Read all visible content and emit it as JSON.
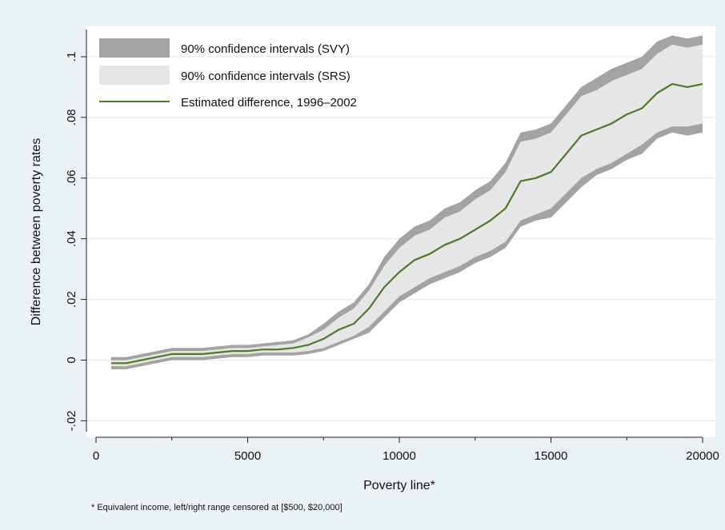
{
  "chart_data": {
    "type": "area",
    "title": "",
    "xlabel": "Poverty line*",
    "ylabel": "Difference between poverty rates",
    "note": "* Equivalent income, left/right range censored at [$500, $20,000]",
    "xlim": [
      0,
      20000
    ],
    "ylim": [
      -0.022,
      0.11
    ],
    "x_ticks": [
      0,
      5000,
      10000,
      15000,
      20000
    ],
    "x_tick_labels": [
      "0",
      "5000",
      "10000",
      "15000",
      "20000"
    ],
    "x_minor_ticks": [
      2500,
      7500,
      12500,
      17500
    ],
    "y_ticks": [
      -0.02,
      0,
      0.02,
      0.04,
      0.06,
      0.08,
      0.1
    ],
    "y_tick_labels": [
      "-.02",
      "0",
      ".02",
      ".04",
      ".06",
      ".08",
      ".1"
    ],
    "grid": true,
    "legend_position": "top-left",
    "legend": [
      "90% confidence intervals (SVY)",
      "90% confidence intervals (SRS)",
      "Estimated difference, 1996–2002"
    ],
    "colors": {
      "background": "#eaf2f3",
      "plot_background": "#ffffff",
      "grid": "#e4ecee",
      "svy_band": "#a3a3a3",
      "srs_band": "#e6e6e6",
      "line": "#4d7a24"
    },
    "x": [
      500,
      1000,
      1500,
      2000,
      2500,
      3000,
      3500,
      4000,
      4500,
      5000,
      5500,
      6000,
      6500,
      7000,
      7500,
      8000,
      8500,
      9000,
      9500,
      10000,
      10500,
      11000,
      11500,
      12000,
      12500,
      13000,
      13500,
      14000,
      14500,
      15000,
      15500,
      16000,
      16500,
      17000,
      17500,
      18000,
      18500,
      19000,
      19500,
      20000
    ],
    "series": [
      {
        "name": "Estimated difference, 1996–2002",
        "values": [
          -0.001,
          -0.001,
          0.0,
          0.001,
          0.002,
          0.002,
          0.002,
          0.0025,
          0.003,
          0.003,
          0.0035,
          0.0035,
          0.004,
          0.005,
          0.007,
          0.01,
          0.012,
          0.017,
          0.024,
          0.029,
          0.033,
          0.035,
          0.038,
          0.04,
          0.043,
          0.046,
          0.05,
          0.059,
          0.06,
          0.062,
          0.068,
          0.074,
          0.076,
          0.078,
          0.081,
          0.083,
          0.088,
          0.091,
          0.09,
          0.091
        ]
      },
      {
        "name": "90% confidence intervals (SRS)",
        "lower": [
          -0.002,
          -0.002,
          -0.001,
          0.0,
          0.001,
          0.001,
          0.001,
          0.0015,
          0.002,
          0.002,
          0.0025,
          0.0025,
          0.0025,
          0.003,
          0.004,
          0.006,
          0.008,
          0.011,
          0.016,
          0.021,
          0.024,
          0.027,
          0.029,
          0.031,
          0.034,
          0.036,
          0.039,
          0.046,
          0.048,
          0.05,
          0.055,
          0.06,
          0.063,
          0.065,
          0.068,
          0.071,
          0.075,
          0.077,
          0.077,
          0.078
        ],
        "upper": [
          0.0,
          0.0,
          0.001,
          0.002,
          0.003,
          0.003,
          0.003,
          0.0035,
          0.004,
          0.004,
          0.0045,
          0.005,
          0.0055,
          0.0075,
          0.01,
          0.014,
          0.017,
          0.023,
          0.031,
          0.037,
          0.041,
          0.043,
          0.047,
          0.049,
          0.053,
          0.056,
          0.062,
          0.072,
          0.073,
          0.075,
          0.081,
          0.087,
          0.089,
          0.092,
          0.094,
          0.096,
          0.101,
          0.104,
          0.103,
          0.104
        ]
      },
      {
        "name": "90% confidence intervals (SVY)",
        "lower": [
          -0.003,
          -0.003,
          -0.002,
          -0.001,
          0.0,
          0.0,
          0.0,
          0.0005,
          0.001,
          0.001,
          0.0015,
          0.0015,
          0.0015,
          0.002,
          0.003,
          0.005,
          0.007,
          0.009,
          0.014,
          0.019,
          0.022,
          0.025,
          0.027,
          0.029,
          0.032,
          0.034,
          0.037,
          0.044,
          0.046,
          0.047,
          0.052,
          0.057,
          0.061,
          0.063,
          0.066,
          0.068,
          0.073,
          0.075,
          0.074,
          0.075
        ],
        "upper": [
          0.001,
          0.001,
          0.002,
          0.003,
          0.004,
          0.004,
          0.004,
          0.0045,
          0.005,
          0.005,
          0.0055,
          0.006,
          0.0065,
          0.0085,
          0.012,
          0.016,
          0.019,
          0.025,
          0.034,
          0.04,
          0.044,
          0.046,
          0.05,
          0.052,
          0.056,
          0.059,
          0.065,
          0.075,
          0.076,
          0.078,
          0.084,
          0.09,
          0.093,
          0.096,
          0.098,
          0.1,
          0.105,
          0.107,
          0.106,
          0.107
        ]
      }
    ]
  }
}
